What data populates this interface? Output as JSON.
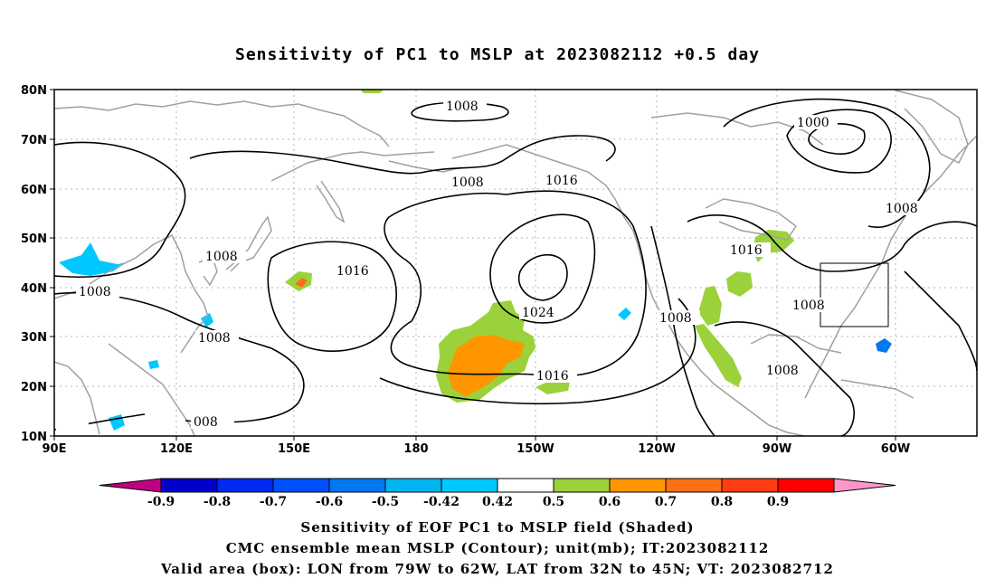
{
  "title": "Sensitivity of PC1 to MSLP at 2023082112 +0.5 day",
  "lat_labels": [
    "80N",
    "70N",
    "60N",
    "50N",
    "40N",
    "30N",
    "20N",
    "10N"
  ],
  "lon_labels": [
    "90E",
    "120E",
    "150E",
    "180",
    "150W",
    "120W",
    "90W",
    "60W"
  ],
  "contour_labels": [
    {
      "text": "1008"
    },
    {
      "text": "1008"
    },
    {
      "text": "1016"
    },
    {
      "text": "1000"
    },
    {
      "text": "1008"
    },
    {
      "text": "1008"
    },
    {
      "text": "1016"
    },
    {
      "text": "1008"
    },
    {
      "text": "1008"
    },
    {
      "text": "1024"
    },
    {
      "text": "1008"
    },
    {
      "text": "1016"
    },
    {
      "text": "1016"
    },
    {
      "text": "1008"
    },
    {
      "text": "1008"
    },
    {
      "text": "008"
    }
  ],
  "colorbar": {
    "labels": [
      "-0.9",
      "-0.8",
      "-0.7",
      "-0.6",
      "-0.5",
      "-0.42",
      "0.42",
      "0.5",
      "0.6",
      "0.7",
      "0.8",
      "0.9"
    ],
    "colors": [
      "#bf0080",
      "#0000c8",
      "#0028f0",
      "#0050ff",
      "#0078f0",
      "#00b4f0",
      "#00c8ff",
      "#ffffff",
      "#9bd23c",
      "#ff9600",
      "#ff6e14",
      "#ff3c14",
      "#ff0000",
      "#ff96c8"
    ]
  },
  "captions": {
    "line1": "Sensitivity of EOF PC1 to MSLP field (Shaded)",
    "line2": "CMC ensemble mean MSLP (Contour); unit(mb); IT:2023082112",
    "line3": "Valid area (box): LON from 79W to 62W, LAT from 32N to 45N; VT: 2023082712"
  }
}
